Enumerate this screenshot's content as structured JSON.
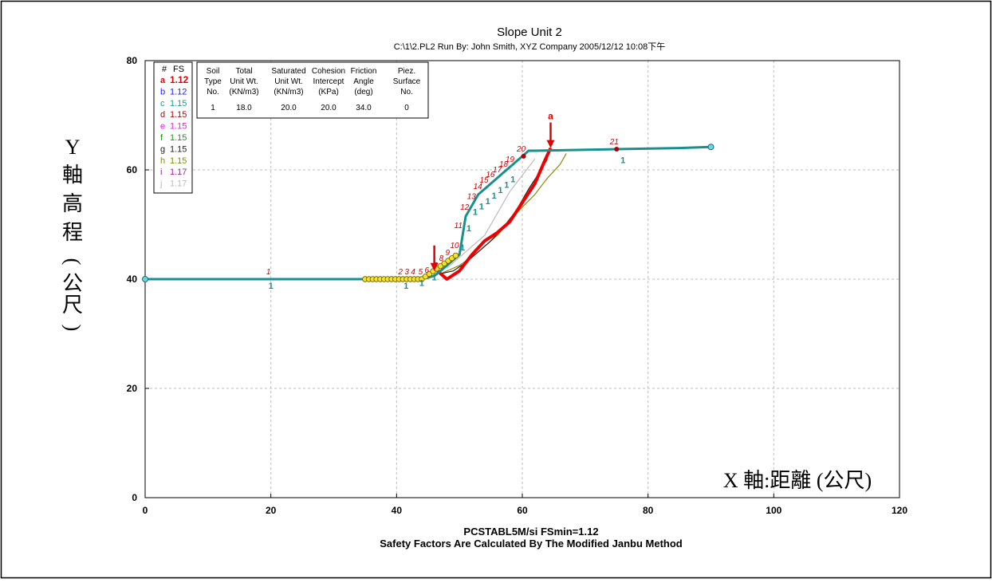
{
  "title": "Slope Unit 2",
  "subtitle": "C:\\1\\2.PL2   Run By: John Smith, XYZ Company   2005/12/12   10:08下午",
  "footer_line1": "PCSTABL5M/si  FSmin=1.12",
  "footer_line2": "Safety Factors Are Calculated By The Modified Janbu Method",
  "ylabel_chars": [
    "Y",
    "軸",
    "高",
    "程",
    "(",
    "公",
    "尺",
    ")"
  ],
  "xlabel": "X 軸:距離 (公尺)",
  "fs_legend": {
    "header": [
      "#",
      "FS"
    ],
    "entries": [
      {
        "letter": "a",
        "fs": "1.12",
        "color": "#e00000"
      },
      {
        "letter": "b",
        "fs": "1.12",
        "color": "#1a1aff"
      },
      {
        "letter": "c",
        "fs": "1.15",
        "color": "#1a9a9a"
      },
      {
        "letter": "d",
        "fs": "1.15",
        "color": "#a01010"
      },
      {
        "letter": "e",
        "fs": "1.15",
        "color": "#e020e0"
      },
      {
        "letter": "f",
        "fs": "1.15",
        "color": "#10a010"
      },
      {
        "letter": "g",
        "fs": "1.15",
        "color": "#222222"
      },
      {
        "letter": "h",
        "fs": "1.15",
        "color": "#8a8a10"
      },
      {
        "letter": "i",
        "fs": "1.17",
        "color": "#a020a0"
      },
      {
        "letter": "j",
        "fs": "1.17",
        "color": "#bbbbbb"
      }
    ]
  },
  "soil_table": {
    "headers": [
      [
        "Soil",
        "Type",
        "No."
      ],
      [
        "Total",
        "Unit Wt.",
        "(KN/m3)"
      ],
      [
        "Saturated",
        "Unit Wt.",
        "(KN/m3)"
      ],
      [
        "Cohesion",
        "Intercept",
        "(KPa)"
      ],
      [
        "Friction",
        "Angle",
        "(deg)"
      ],
      [
        "Piez.",
        "Surface",
        "No."
      ]
    ],
    "row": [
      "1",
      "18.0",
      "20.0",
      "20.0",
      "34.0",
      "0"
    ]
  },
  "chart_data": {
    "type": "line",
    "xlim": [
      0,
      120
    ],
    "ylim": [
      0,
      80
    ],
    "x_ticks": [
      "0",
      "20",
      "40",
      "60",
      "80",
      "100",
      "120"
    ],
    "y_ticks": [
      "0",
      "20",
      "40",
      "60",
      "80"
    ],
    "grid": true,
    "series": [
      {
        "role": "ground-profile",
        "color": "#1a8f8f",
        "x": [
          0,
          20,
          35,
          40,
          42,
          44,
          45,
          46,
          47,
          48,
          49,
          50,
          51,
          52,
          53,
          54,
          55,
          56,
          57,
          58,
          59,
          60,
          61,
          62,
          75,
          85,
          90
        ],
        "y": [
          40,
          40,
          40,
          40,
          40,
          40,
          40.3,
          40.6,
          41.5,
          42.5,
          43.5,
          44.5,
          51.5,
          53.5,
          55.5,
          56.5,
          57.5,
          58.5,
          59.5,
          60.5,
          61.5,
          62.5,
          63.5,
          63.5,
          63.8,
          64.0,
          64.2
        ]
      },
      {
        "role": "critical-surface-a",
        "color": "#ee0000",
        "x": [
          46.5,
          48,
          50,
          52,
          54,
          56,
          58,
          60,
          62,
          63.5,
          64.5
        ],
        "y": [
          41.5,
          40,
          41.5,
          44.5,
          47,
          48.5,
          50.5,
          54,
          57.5,
          61.5,
          64
        ]
      },
      {
        "role": "surface-g",
        "color": "#222222",
        "x": [
          47,
          49,
          51,
          53,
          55,
          57,
          59,
          61,
          63,
          64
        ],
        "y": [
          41,
          41.5,
          43,
          45,
          47,
          49.5,
          52.5,
          56.5,
          60,
          62
        ]
      },
      {
        "role": "surface-h",
        "color": "#8a8a10",
        "x": [
          47,
          50,
          53,
          56,
          59,
          62,
          64,
          66,
          67
        ],
        "y": [
          41,
          42.5,
          45,
          48,
          52,
          55.5,
          58.5,
          61,
          63
        ]
      },
      {
        "role": "surface-j",
        "color": "#bbbbbb",
        "x": [
          48,
          50,
          52,
          54,
          56,
          58,
          60,
          62
        ],
        "y": [
          42,
          44,
          46,
          48,
          52,
          56,
          59,
          62
        ]
      }
    ],
    "point_labels": [
      {
        "x": 20,
        "y": 40,
        "label": "1"
      },
      {
        "x": 41,
        "y": 40,
        "label": "2"
      },
      {
        "x": 42,
        "y": 40,
        "label": "3"
      },
      {
        "x": 43,
        "y": 40,
        "label": "4"
      },
      {
        "x": 44.2,
        "y": 40,
        "label": "5"
      },
      {
        "x": 45.2,
        "y": 40.3,
        "label": "6"
      },
      {
        "x": 46.5,
        "y": 41.2,
        "label": "7"
      },
      {
        "x": 47.5,
        "y": 42.5,
        "label": "8"
      },
      {
        "x": 48.5,
        "y": 43.5,
        "label": "9"
      },
      {
        "x": 49.6,
        "y": 44.8,
        "label": "10"
      },
      {
        "x": 50.2,
        "y": 48.5,
        "label": "11"
      },
      {
        "x": 51.2,
        "y": 51.8,
        "label": "12"
      },
      {
        "x": 52.3,
        "y": 53.8,
        "label": "13"
      },
      {
        "x": 53.3,
        "y": 55.6,
        "label": "14"
      },
      {
        "x": 54.3,
        "y": 56.8,
        "label": "15"
      },
      {
        "x": 55.3,
        "y": 57.8,
        "label": "16"
      },
      {
        "x": 56.4,
        "y": 58.7,
        "label": "17"
      },
      {
        "x": 57.4,
        "y": 59.7,
        "label": "18"
      },
      {
        "x": 58.4,
        "y": 60.6,
        "label": "19"
      },
      {
        "x": 60.2,
        "y": 62.5,
        "label": "20"
      },
      {
        "x": 75,
        "y": 63.8,
        "label": "21"
      }
    ],
    "start_markers": [
      {
        "x": 0,
        "y": 40
      },
      {
        "x": 90,
        "y": 64.2
      }
    ],
    "critical_arrows": [
      {
        "x": 46,
        "y": 41.5,
        "label": ""
      },
      {
        "x": 64.5,
        "y": 64,
        "label": "a"
      }
    ]
  }
}
